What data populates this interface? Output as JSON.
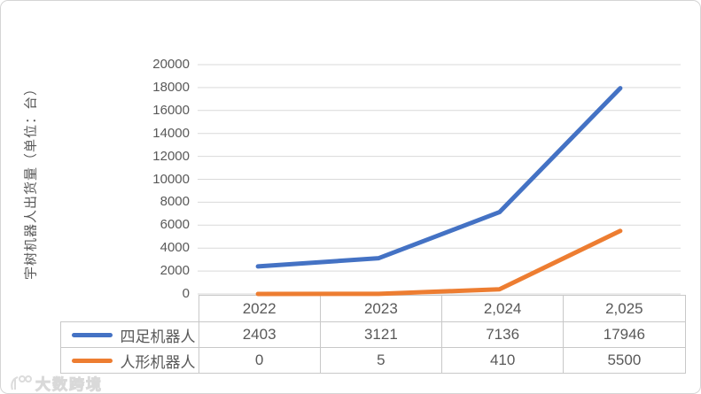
{
  "watermark": {
    "text": "大数跨境"
  },
  "chart": {
    "y_axis_title": "宇树机器人出货量（单位：台）"
  },
  "chart_data": {
    "type": "line",
    "categories": [
      "2022",
      "2023",
      "2,024",
      "2,025"
    ],
    "series": [
      {
        "name": "四足机器人",
        "values": [
          2403,
          3121,
          7136,
          17946
        ],
        "color": "#4472C4"
      },
      {
        "name": "人形机器人",
        "values": [
          0,
          5,
          410,
          5500
        ],
        "color": "#ED7D31"
      }
    ],
    "title": "",
    "xlabel": "",
    "ylabel": "宇树机器人出货量（单位：台）",
    "ylim": [
      0,
      20000
    ],
    "ytick_step": 2000,
    "grid": true,
    "gridline_color": "#d9d9d9",
    "legend_position": "table-left",
    "line_width": 5
  }
}
